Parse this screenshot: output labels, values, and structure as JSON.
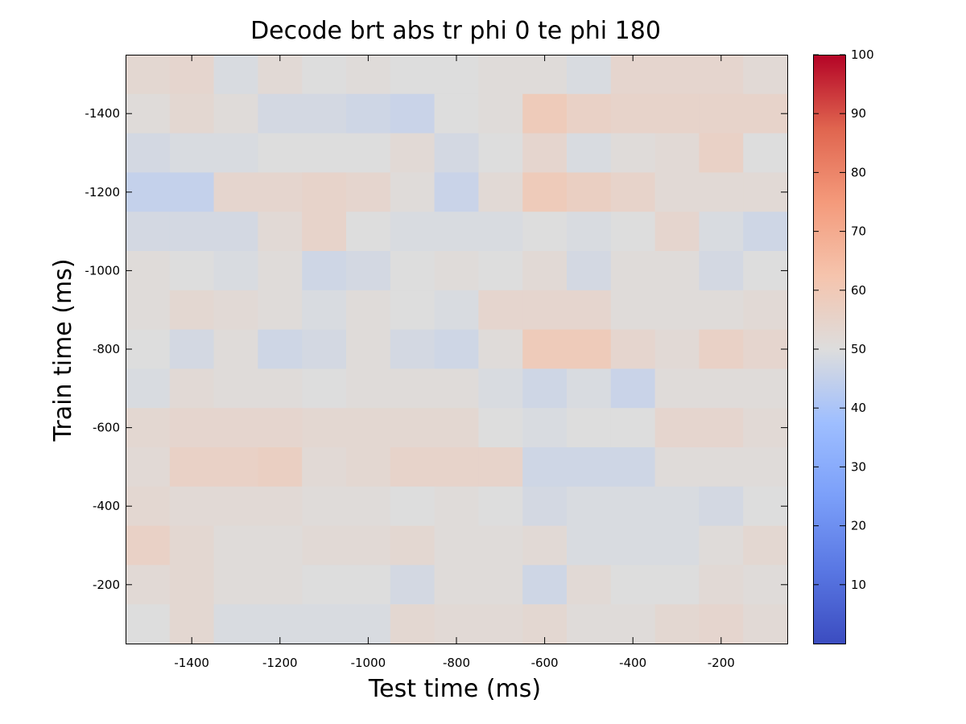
{
  "chart_data": {
    "type": "heatmap",
    "title": "Decode brt abs tr phi 0 te phi 180",
    "xlabel": "Test time (ms)",
    "ylabel": "Train time (ms)",
    "x_centers": [
      -1500,
      -1400,
      -1300,
      -1200,
      -1100,
      -1000,
      -900,
      -800,
      -700,
      -600,
      -500,
      -400,
      -300,
      -200,
      -100
    ],
    "y_centers": [
      -1500,
      -1400,
      -1300,
      -1200,
      -1100,
      -1000,
      -900,
      -800,
      -700,
      -600,
      -500,
      -400,
      -300,
      -200,
      -100
    ],
    "xlim": [
      -1550,
      -50
    ],
    "ylim": [
      -1550,
      -50
    ],
    "y_reversed": true,
    "x_ticks": [
      -1400,
      -1200,
      -1000,
      -800,
      -600,
      -400,
      -200
    ],
    "y_ticks": [
      -1400,
      -1200,
      -1000,
      -800,
      -600,
      -400,
      -200
    ],
    "colorbar": {
      "min": 0,
      "max": 100,
      "ticks": [
        10,
        20,
        30,
        40,
        50,
        60,
        70,
        80,
        90,
        100
      ],
      "colormap": "coolwarm"
    },
    "values": [
      [
        53,
        54,
        49,
        52,
        50,
        51,
        50,
        50,
        51,
        51,
        49,
        54,
        54,
        54,
        52
      ],
      [
        51,
        53,
        51,
        48,
        48,
        47,
        46,
        50,
        51,
        59,
        56,
        55,
        55,
        55,
        55
      ],
      [
        48,
        49,
        49,
        50,
        50,
        50,
        52,
        48,
        50,
        54,
        49,
        51,
        52,
        56,
        50
      ],
      [
        45,
        45,
        54,
        54,
        55,
        54,
        51,
        46,
        52,
        59,
        57,
        55,
        52,
        52,
        52
      ],
      [
        48,
        48,
        48,
        52,
        55,
        50,
        49,
        49,
        49,
        50,
        49,
        50,
        54,
        49,
        47
      ],
      [
        51,
        50,
        49,
        51,
        47,
        48,
        50,
        51,
        50,
        52,
        48,
        51,
        51,
        48,
        50
      ],
      [
        51,
        53,
        52,
        51,
        49,
        51,
        50,
        49,
        54,
        54,
        54,
        51,
        51,
        51,
        52
      ],
      [
        50,
        48,
        51,
        47,
        48,
        51,
        48,
        47,
        51,
        59,
        59,
        54,
        52,
        56,
        54
      ],
      [
        49,
        52,
        51,
        51,
        50,
        51,
        51,
        51,
        49,
        47,
        49,
        46,
        51,
        51,
        51
      ],
      [
        53,
        54,
        54,
        54,
        53,
        53,
        53,
        53,
        50,
        49,
        50,
        50,
        54,
        54,
        52
      ],
      [
        52,
        56,
        56,
        57,
        52,
        53,
        55,
        55,
        55,
        47,
        47,
        47,
        51,
        51,
        51
      ],
      [
        53,
        52,
        52,
        52,
        51,
        51,
        50,
        51,
        50,
        48,
        49,
        49,
        49,
        48,
        50
      ],
      [
        56,
        53,
        51,
        51,
        52,
        52,
        53,
        51,
        51,
        52,
        49,
        49,
        49,
        51,
        53
      ],
      [
        52,
        53,
        51,
        51,
        50,
        50,
        48,
        51,
        51,
        47,
        52,
        50,
        50,
        52,
        51
      ],
      [
        50,
        53,
        49,
        49,
        49,
        49,
        53,
        52,
        52,
        53,
        51,
        51,
        53,
        54,
        52
      ]
    ]
  }
}
